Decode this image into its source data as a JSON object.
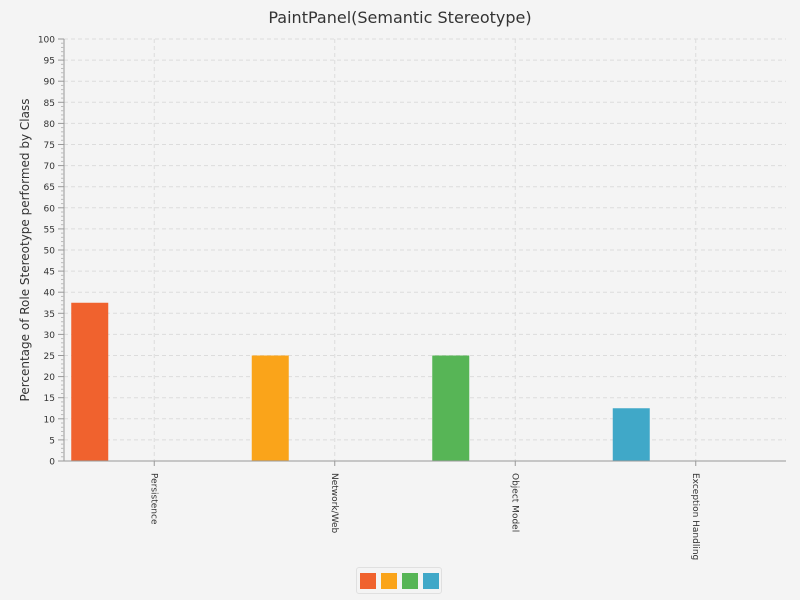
{
  "chart_data": {
    "type": "bar",
    "title": "PaintPanel(Semantic Stereotype)",
    "xlabel": "",
    "ylabel": "Percentage of Role Stereotype performed by Class",
    "categories": [
      "Persistence",
      "Network/Web",
      "Object Model",
      "Exception Handling"
    ],
    "values": [
      37.5,
      25,
      25,
      12.5
    ],
    "colors": [
      "#f0622e",
      "#faa41a",
      "#57b556",
      "#40a8c8"
    ],
    "ylim": [
      0,
      100
    ],
    "ytick_step": 5,
    "grid": true,
    "legend_position": "bottom-center",
    "legend_entries": [
      "",
      "",
      "",
      ""
    ]
  }
}
